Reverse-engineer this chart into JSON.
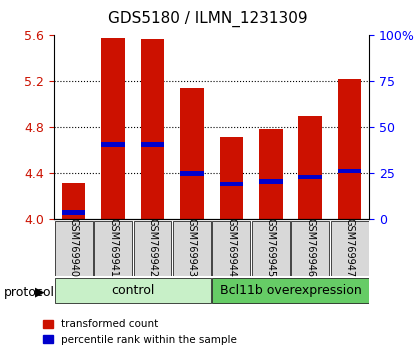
{
  "title": "GDS5180 / ILMN_1231309",
  "samples": [
    "GSM769940",
    "GSM769941",
    "GSM769942",
    "GSM769943",
    "GSM769944",
    "GSM769945",
    "GSM769946",
    "GSM769947"
  ],
  "transformed_counts": [
    4.32,
    5.58,
    5.57,
    5.14,
    4.72,
    4.79,
    4.9,
    5.22
  ],
  "percentile_ranks": [
    4.06,
    4.65,
    4.65,
    4.4,
    4.31,
    4.33,
    4.37,
    4.42
  ],
  "ylim_left": [
    4.0,
    5.6
  ],
  "ylim_right": [
    0,
    100
  ],
  "bar_color": "#cc1100",
  "marker_color": "#0000cc",
  "bar_bottom": 4.0,
  "gridline_values": [
    4.4,
    4.8,
    5.2
  ],
  "right_ticks": [
    0,
    25,
    50,
    75,
    100
  ],
  "right_tick_positions": [
    4.0,
    4.4,
    4.8,
    5.2,
    5.6
  ],
  "control_label": "control",
  "overexpression_label": "Bcl11b overexpression",
  "protocol_label": "protocol",
  "legend_red": "transformed count",
  "legend_blue": "percentile rank within the sample",
  "control_color": "#c8f0c8",
  "overexpression_color": "#66cc66",
  "n_control": 4,
  "n_overexpression": 4,
  "bar_width": 0.6
}
